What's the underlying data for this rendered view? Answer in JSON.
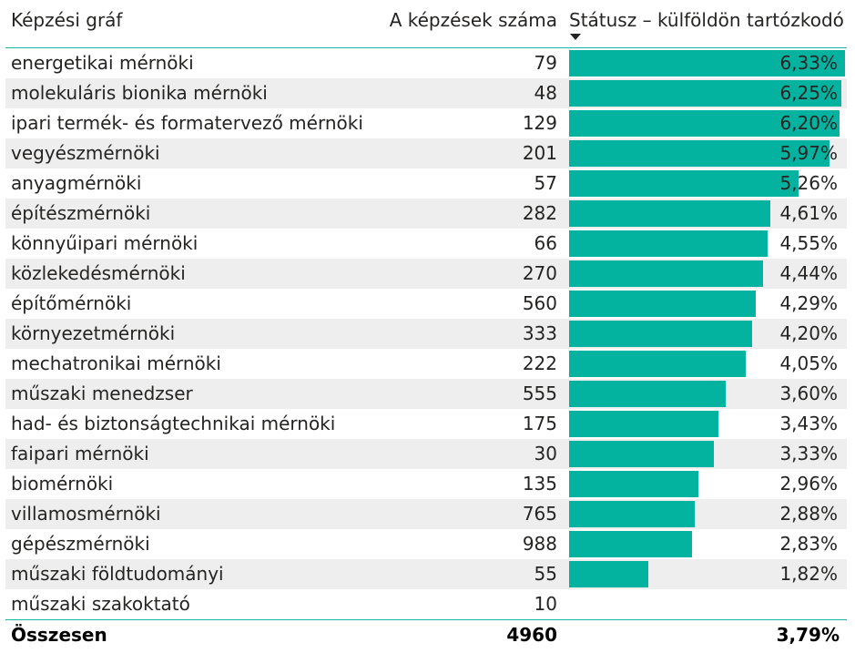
{
  "header": {
    "col1": "Képzési gráf",
    "col2": "A képzések száma",
    "col3": "Státusz – külföldön tartózkodó",
    "sort_icon": "sort-descending-icon"
  },
  "total": {
    "label": "Összesen",
    "count": "4960",
    "pct": "3,79%"
  },
  "chart_data": {
    "type": "table",
    "columns": [
      "Képzési gráf",
      "A képzések száma",
      "Státusz – külföldön tartózkodó"
    ],
    "bar_color": "#03b3a0",
    "xlim": [
      0,
      6.33
    ],
    "rows": [
      {
        "name": "energetikai mérnöki",
        "count": 79,
        "pct": 6.33,
        "pct_label": "6,33%"
      },
      {
        "name": "molekuláris bionika mérnöki",
        "count": 48,
        "pct": 6.25,
        "pct_label": "6,25%"
      },
      {
        "name": "ipari termék- és formatervező mérnöki",
        "count": 129,
        "pct": 6.2,
        "pct_label": "6,20%"
      },
      {
        "name": "vegyészmérnöki",
        "count": 201,
        "pct": 5.97,
        "pct_label": "5,97%"
      },
      {
        "name": "anyagmérnöki",
        "count": 57,
        "pct": 5.26,
        "pct_label": "5,26%"
      },
      {
        "name": "építészmérnöki",
        "count": 282,
        "pct": 4.61,
        "pct_label": "4,61%"
      },
      {
        "name": "könnyűipari mérnöki",
        "count": 66,
        "pct": 4.55,
        "pct_label": "4,55%"
      },
      {
        "name": "közlekedésmérnöki",
        "count": 270,
        "pct": 4.44,
        "pct_label": "4,44%"
      },
      {
        "name": "építőmérnöki",
        "count": 560,
        "pct": 4.29,
        "pct_label": "4,29%"
      },
      {
        "name": "környezetmérnöki",
        "count": 333,
        "pct": 4.2,
        "pct_label": "4,20%"
      },
      {
        "name": "mechatronikai mérnöki",
        "count": 222,
        "pct": 4.05,
        "pct_label": "4,05%"
      },
      {
        "name": "műszaki menedzser",
        "count": 555,
        "pct": 3.6,
        "pct_label": "3,60%"
      },
      {
        "name": "had- és biztonságtechnikai mérnöki",
        "count": 175,
        "pct": 3.43,
        "pct_label": "3,43%"
      },
      {
        "name": "faipari mérnöki",
        "count": 30,
        "pct": 3.33,
        "pct_label": "3,33%"
      },
      {
        "name": "biomérnöki",
        "count": 135,
        "pct": 2.96,
        "pct_label": "2,96%"
      },
      {
        "name": "villamosmérnöki",
        "count": 765,
        "pct": 2.88,
        "pct_label": "2,88%"
      },
      {
        "name": "gépészmérnöki",
        "count": 988,
        "pct": 2.83,
        "pct_label": "2,83%"
      },
      {
        "name": "műszaki földtudományi",
        "count": 55,
        "pct": 1.82,
        "pct_label": "1,82%"
      },
      {
        "name": "műszaki szakoktató",
        "count": 10,
        "pct": null,
        "pct_label": ""
      }
    ]
  }
}
